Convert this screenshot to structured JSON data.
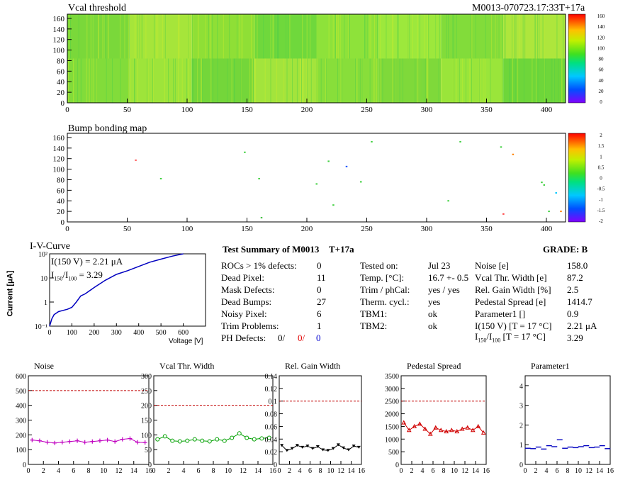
{
  "vcal": {
    "title": "Vcal threshold",
    "module_id": "M0013-070723.17:33T+17a",
    "x_ticks": [
      "0",
      "50",
      "100",
      "150",
      "200",
      "250",
      "300",
      "350",
      "400"
    ],
    "y_ticks": [
      "0",
      "20",
      "40",
      "60",
      "80",
      "100",
      "120",
      "140",
      "160"
    ],
    "z_ticks": [
      "0",
      "20",
      "40",
      "60",
      "80",
      "100",
      "120",
      "140",
      "160"
    ]
  },
  "bump": {
    "title": "Bump bonding map",
    "x_ticks": [
      "0",
      "50",
      "100",
      "150",
      "200",
      "250",
      "300",
      "350",
      "400"
    ],
    "y_ticks": [
      "0",
      "20",
      "40",
      "60",
      "80",
      "100",
      "120",
      "140",
      "160"
    ],
    "z_ticks": [
      "-2",
      "-1.5",
      "-1",
      "-0.5",
      "0",
      "0.5",
      "1",
      "1.5",
      "2"
    ]
  },
  "iv": {
    "title": "I-V-Curve",
    "ylabel": "Current [μA]",
    "xlabel": "Voltage [V]",
    "annot1": "I(150 V) = 2.21 μA",
    "annot2_base": "I",
    "annot2_sub": "150",
    "annot2_mid": "/I",
    "annot2_sub2": "100",
    "annot2_val": " = 3.29",
    "x_ticks": [
      "0",
      "100",
      "200",
      "300",
      "400",
      "500",
      "600"
    ],
    "y_ticks": [
      "10⁻¹",
      "1",
      "10",
      "10²"
    ]
  },
  "summary": {
    "title": "Test Summary of M0013",
    "tag": "T+17a",
    "grade": "GRADE:  B",
    "col1": [
      {
        "label": "ROCs > 1% defects:",
        "value": "0"
      },
      {
        "label": "Dead Pixel:",
        "value": "11"
      },
      {
        "label": "Mask Defects:",
        "value": "0"
      },
      {
        "label": "Dead Bumps:",
        "value": "27"
      },
      {
        "label": "Noisy Pixel:",
        "value": "6"
      },
      {
        "label": "Trim Problems:",
        "value": "1"
      }
    ],
    "ph_label": "PH Defects:",
    "ph_vals": [
      "0/",
      "0/",
      "0"
    ],
    "ph_colors": [
      "#000000",
      "#e00000",
      "#0000d0"
    ],
    "col2": [
      {
        "label": "Tested on:",
        "value": "Jul 23"
      },
      {
        "label": "Temp. [°C]:",
        "value": "16.7 +- 0.5"
      },
      {
        "label": "Trim / phCal:",
        "value": "yes / yes"
      },
      {
        "label": "Therm. cycl.:",
        "value": "yes"
      },
      {
        "label": "TBM1:",
        "value": "ok"
      },
      {
        "label": "TBM2:",
        "value": "ok"
      }
    ],
    "col3": [
      {
        "label": "Noise [e]",
        "value": "158.0"
      },
      {
        "label": "Vcal Thr. Width [e]",
        "value": "87.2"
      },
      {
        "label": "Rel. Gain Width [%]",
        "value": "2.5"
      },
      {
        "label": "Pedestal Spread [e]",
        "value": "1414.7"
      },
      {
        "label": "Parameter1 []",
        "value": "0.9"
      },
      {
        "label": "I(150 V) [T = 17 °C]",
        "value": "2.21 μA"
      }
    ],
    "ratio_label_pre": "I",
    "ratio_sub1": "150",
    "ratio_mid": "/I",
    "ratio_sub2": "100",
    "ratio_label_post": " [T = 17 °C]",
    "ratio_value": "3.29"
  },
  "chart_data": [
    {
      "type": "line",
      "title": "Noise",
      "x": [
        0,
        1,
        2,
        3,
        4,
        5,
        6,
        7,
        8,
        9,
        10,
        11,
        12,
        13,
        14,
        15
      ],
      "values": [
        165,
        160,
        150,
        145,
        150,
        155,
        160,
        150,
        155,
        160,
        165,
        155,
        170,
        175,
        150,
        148
      ],
      "ylim": [
        0,
        600
      ],
      "y_ticks": [
        0,
        100,
        200,
        300,
        400,
        500,
        600
      ],
      "x_ticks": [
        0,
        2,
        4,
        6,
        8,
        10,
        12,
        14,
        16
      ],
      "threshold": 500,
      "color": "#c000c0",
      "marker": "plus"
    },
    {
      "type": "line",
      "title": "Vcal Thr. Width",
      "x": [
        0,
        1,
        2,
        3,
        4,
        5,
        6,
        7,
        8,
        9,
        10,
        11,
        12,
        13,
        14,
        15
      ],
      "values": [
        85,
        95,
        80,
        78,
        80,
        85,
        80,
        78,
        85,
        80,
        90,
        105,
        90,
        85,
        88,
        90
      ],
      "ylim": [
        0,
        300
      ],
      "y_ticks": [
        0,
        50,
        100,
        150,
        200,
        250,
        300
      ],
      "x_ticks": [
        0,
        2,
        4,
        6,
        8,
        10,
        12,
        14,
        16
      ],
      "threshold": 200,
      "color": "#00a000",
      "marker": "circle"
    },
    {
      "type": "line",
      "title": "Rel. Gain Width",
      "x": [
        0,
        1,
        2,
        3,
        4,
        5,
        6,
        7,
        8,
        9,
        10,
        11,
        12,
        13,
        14,
        15
      ],
      "values": [
        0.03,
        0.022,
        0.025,
        0.03,
        0.027,
        0.029,
        0.025,
        0.028,
        0.023,
        0.022,
        0.025,
        0.031,
        0.026,
        0.023,
        0.029,
        0.027
      ],
      "ylim": [
        0,
        0.14
      ],
      "y_ticks": [
        0,
        0.02,
        0.04,
        0.06,
        0.08,
        0.1,
        0.12,
        0.14
      ],
      "x_ticks": [
        0,
        2,
        4,
        6,
        8,
        10,
        12,
        14,
        16
      ],
      "threshold": 0.1,
      "color": "#000000",
      "marker": "triangle-down"
    },
    {
      "type": "line",
      "title": "Pedestal Spread",
      "x": [
        0,
        1,
        2,
        3,
        4,
        5,
        6,
        7,
        8,
        9,
        10,
        11,
        12,
        13,
        14,
        15
      ],
      "values": [
        1650,
        1350,
        1500,
        1600,
        1400,
        1200,
        1450,
        1350,
        1300,
        1350,
        1300,
        1400,
        1450,
        1350,
        1500,
        1250
      ],
      "ylim": [
        0,
        3500
      ],
      "y_ticks": [
        0,
        500,
        1000,
        1500,
        2000,
        2500,
        3000,
        3500
      ],
      "x_ticks": [
        0,
        2,
        4,
        6,
        8,
        10,
        12,
        14,
        16
      ],
      "threshold": 2500,
      "color": "#d00000",
      "marker": "triangle-up"
    },
    {
      "type": "scatter",
      "title": "Parameter1",
      "x": [
        0,
        1,
        2,
        3,
        4,
        5,
        6,
        7,
        8,
        9,
        10,
        11,
        12,
        13,
        14,
        15
      ],
      "values": [
        0.82,
        0.8,
        0.88,
        0.78,
        0.95,
        0.9,
        1.25,
        0.82,
        0.88,
        0.85,
        0.9,
        0.95,
        0.85,
        0.88,
        0.95,
        0.8
      ],
      "ylim": [
        0,
        4.5
      ],
      "y_ticks": [
        0,
        1,
        2,
        3,
        4
      ],
      "x_ticks": [
        0,
        2,
        4,
        6,
        8,
        10,
        12,
        14,
        16
      ],
      "color": "#0000c0",
      "marker": "hline"
    },
    {
      "type": "line",
      "title": "I-V-Curve",
      "x": [
        0,
        10,
        20,
        40,
        60,
        80,
        100,
        120,
        140,
        160,
        200,
        250,
        300,
        350,
        400,
        450,
        500,
        550,
        600
      ],
      "values": [
        0.1,
        0.2,
        0.3,
        0.4,
        0.45,
        0.5,
        0.6,
        1,
        1.8,
        2.2,
        4,
        8,
        14,
        20,
        30,
        45,
        60,
        80,
        100
      ],
      "xlim": [
        0,
        700
      ],
      "ylim": [
        0.1,
        100
      ],
      "log_y": true,
      "color": "#0000c0"
    }
  ]
}
